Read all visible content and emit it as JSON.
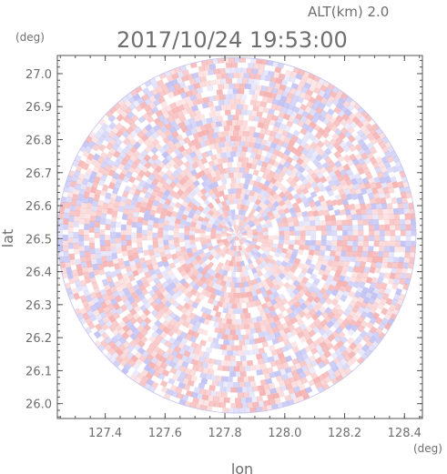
{
  "header": {
    "altitude_label": "ALT(km)  2.0",
    "timestamp": "2017/10/24  19:53:00"
  },
  "chart_data": {
    "type": "heatmap",
    "title": "2017/10/24  19:53:00",
    "subtitle": "ALT(km)  2.0",
    "xlabel": "lon",
    "ylabel": "lat",
    "x_unit": "(deg)",
    "y_unit": "(deg)",
    "xlim": [
      127.24,
      128.46
    ],
    "ylim": [
      25.955,
      27.055
    ],
    "x_ticks": [
      127.4,
      127.6,
      127.8,
      128.0,
      128.2,
      128.4
    ],
    "x_tick_labels": [
      "127.4",
      "127.6",
      "127.8",
      "128.0",
      "128.2",
      "128.4"
    ],
    "y_ticks": [
      26.0,
      26.1,
      26.2,
      26.3,
      26.4,
      26.5,
      26.6,
      26.7,
      26.8,
      26.9,
      27.0
    ],
    "y_tick_labels": [
      "26.0",
      "26.1",
      "26.2",
      "26.3",
      "26.4",
      "26.5",
      "26.6",
      "26.7",
      "26.8",
      "26.9",
      "27.0"
    ],
    "radar_center": {
      "lon": 127.84,
      "lat": 26.51
    },
    "radar_extent_deg": {
      "lon": 0.6,
      "lat": 0.54
    },
    "color_positive": "#f4a7a7",
    "color_negative": "#b8b8f2",
    "color_neutral": "#ffffff",
    "grid": false,
    "legend": "none"
  }
}
